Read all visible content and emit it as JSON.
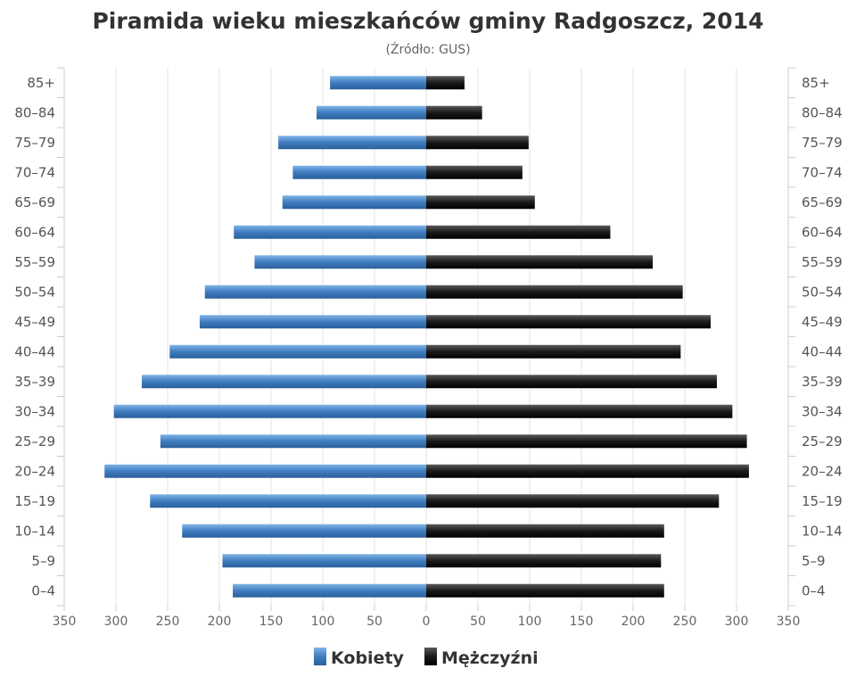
{
  "chart_data": {
    "type": "bar",
    "orientation": "horizontal",
    "layout": "population-pyramid",
    "title": "Piramida wieku mieszkańców gminy Radgoszcz, 2014",
    "subtitle": "(Źródło: GUS)",
    "categories": [
      "0–4",
      "5–9",
      "10–14",
      "15–19",
      "20–24",
      "25–29",
      "30–34",
      "35–39",
      "40–44",
      "45–49",
      "50–54",
      "55–59",
      "60–64",
      "65–69",
      "70–74",
      "75–79",
      "80–84",
      "85+"
    ],
    "series": [
      {
        "name": "Kobiety",
        "side": "left",
        "color": "#4a86c5",
        "values": [
          187,
          197,
          236,
          267,
          311,
          257,
          302,
          275,
          248,
          219,
          214,
          166,
          186,
          139,
          129,
          143,
          106,
          93
        ]
      },
      {
        "name": "Mężczyźni",
        "side": "right",
        "color": "#222222",
        "values": [
          230,
          227,
          230,
          283,
          312,
          310,
          296,
          281,
          246,
          275,
          248,
          219,
          178,
          105,
          93,
          99,
          54,
          37
        ]
      }
    ],
    "xlim": [
      -350,
      350
    ],
    "x_ticks": [
      -350,
      -300,
      -250,
      -200,
      -150,
      -100,
      -50,
      0,
      50,
      100,
      150,
      200,
      250,
      300,
      350
    ],
    "x_tick_labels": [
      "350",
      "300",
      "250",
      "200",
      "150",
      "100",
      "50",
      "0",
      "50",
      "100",
      "150",
      "200",
      "250",
      "300",
      "350"
    ],
    "grid": true,
    "legend_position": "bottom-center"
  }
}
